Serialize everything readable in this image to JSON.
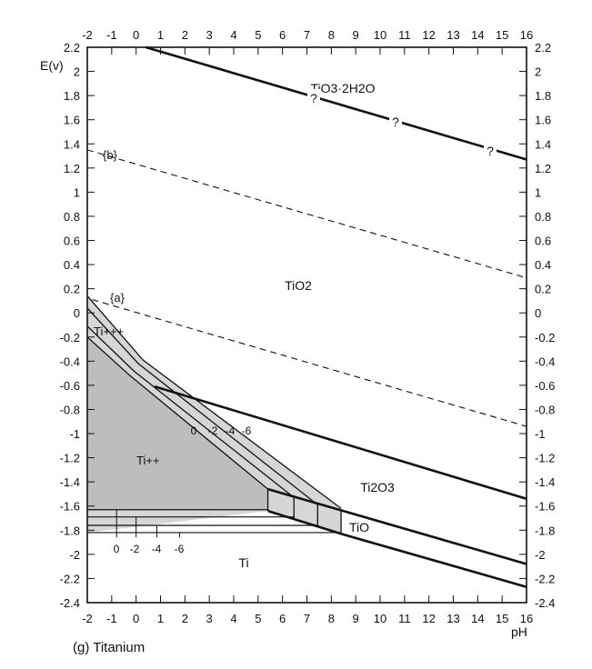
{
  "chart_data": {
    "type": "line",
    "caption": "(g) Titanium",
    "xlabel": "pH",
    "ylabel": "E(v)",
    "xlim": [
      -2,
      16
    ],
    "ylim": [
      -2.4,
      2.2
    ],
    "xticks": [
      "-2",
      "-1",
      "0",
      "1",
      "2",
      "3",
      "4",
      "5",
      "6",
      "7",
      "8",
      "9",
      "10",
      "11",
      "12",
      "13",
      "14",
      "15",
      "16"
    ],
    "yticks": [
      "2.2",
      "2",
      "1.8",
      "1.6",
      "1.4",
      "1.2",
      "1",
      "0.8",
      "0.6",
      "0.4",
      "0.2",
      "0",
      "-0.2",
      "-0.4",
      "-0.6",
      "-0.8",
      "-1",
      "-1.2",
      "-1.4",
      "-1.6",
      "-1.8",
      "-2",
      "-2.2",
      "-2.4"
    ],
    "grid": false,
    "colors": {
      "line": "#111111",
      "shade_dark": "#bdbdbd",
      "shade_light": "#d6d6d6"
    },
    "region_labels": {
      "tio3": "TiO3·2H2O",
      "tio2": "TiO2",
      "ti2o3": "Ti2O3",
      "tio": "TiO",
      "ti": "Ti",
      "ti3": "Ti+++",
      "ti2": "Ti++",
      "b": "{b}",
      "a": "{a}"
    },
    "question_marks": [
      "?",
      "?",
      "?"
    ],
    "contour_labels": [
      "0",
      "-2",
      "-4",
      "-6"
    ],
    "lines": {
      "tio3_tio2": {
        "style": "solid-thick",
        "points": [
          [
            0.4,
            2.2
          ],
          [
            16,
            1.27
          ]
        ]
      },
      "oxygen_b": {
        "style": "dashed",
        "points": [
          [
            -2,
            1.35
          ],
          [
            16,
            0.29
          ]
        ]
      },
      "hydrogen_a": {
        "style": "dashed",
        "points": [
          [
            -1.8,
            0.11
          ],
          [
            16,
            -0.94
          ]
        ]
      },
      "tio2_ti2o3": {
        "style": "solid-thick",
        "points": [
          [
            0.76,
            -0.61
          ],
          [
            16,
            -1.54
          ]
        ]
      },
      "ti2o3_tio": {
        "style": "solid-thick",
        "points": [
          [
            5.4,
            -1.46
          ],
          [
            16,
            -2.08
          ]
        ]
      },
      "tio_ti": {
        "style": "solid-thick",
        "points": [
          [
            5.4,
            -1.64
          ],
          [
            8.4,
            -1.83
          ],
          [
            16,
            -2.27
          ]
        ]
      },
      "ion_contours": [
        {
          "label": "-6",
          "points": [
            [
              -2,
              0.14
            ],
            [
              0.28,
              -0.39
            ],
            [
              8.4,
              -1.62
            ]
          ]
        },
        {
          "label": "-4",
          "points": [
            [
              -2,
              0.04
            ],
            [
              0.09,
              -0.42
            ],
            [
              7.44,
              -1.59
            ]
          ]
        },
        {
          "label": "-2",
          "points": [
            [
              -2,
              -0.11
            ],
            [
              -0.1,
              -0.48
            ],
            [
              6.47,
              -1.53
            ]
          ]
        },
        {
          "label": "0",
          "points": [
            [
              -2,
              -0.2
            ],
            [
              -0.25,
              -0.52
            ],
            [
              5.4,
              -1.46
            ]
          ]
        }
      ],
      "ti_contours": [
        {
          "label": "0",
          "E": -1.63,
          "end_pH": 5.4,
          "tick_pH": -0.8
        },
        {
          "label": "-2",
          "E": -1.69,
          "end_pH": 6.47,
          "tick_pH": -0.0
        },
        {
          "label": "-4",
          "E": -1.76,
          "end_pH": 7.44,
          "tick_pH": 0.85
        },
        {
          "label": "-6",
          "E": -1.82,
          "end_pH": 8.4,
          "tick_pH": 1.78
        }
      ],
      "tio_box_verticals": [
        5.4,
        6.47,
        7.44,
        8.4
      ]
    }
  }
}
